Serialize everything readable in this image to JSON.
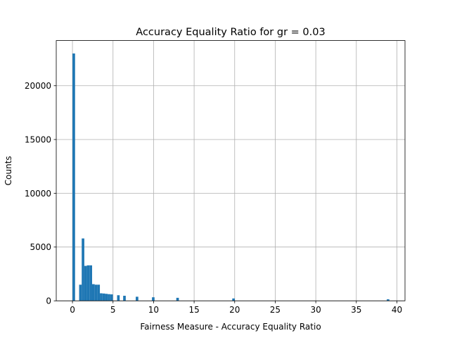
{
  "chart_data": {
    "type": "bar",
    "title": "Accuracy Equality Ratio for gr = 0.03",
    "xlabel": "Fairness Measure - Accuracy Equality Ratio",
    "ylabel": "Counts",
    "xlim": [
      -2.0,
      41.0
    ],
    "ylim": [
      0,
      24200
    ],
    "xticks": [
      0,
      5,
      10,
      15,
      20,
      25,
      30,
      35,
      40
    ],
    "yticks": [
      0,
      5000,
      10000,
      15000,
      20000
    ],
    "grid": true,
    "bar_color": "#1f77b4",
    "bins": [
      {
        "x0": 0.0,
        "x1": 0.32,
        "count": 23000
      },
      {
        "x0": 0.82,
        "x1": 1.14,
        "count": 1500
      },
      {
        "x0": 1.14,
        "x1": 1.46,
        "count": 5800
      },
      {
        "x0": 1.46,
        "x1": 1.78,
        "count": 3250
      },
      {
        "x0": 1.78,
        "x1": 2.1,
        "count": 3300
      },
      {
        "x0": 2.1,
        "x1": 2.42,
        "count": 3300
      },
      {
        "x0": 2.42,
        "x1": 2.74,
        "count": 1550
      },
      {
        "x0": 2.74,
        "x1": 3.06,
        "count": 1500
      },
      {
        "x0": 3.06,
        "x1": 3.38,
        "count": 1500
      },
      {
        "x0": 3.38,
        "x1": 3.7,
        "count": 700
      },
      {
        "x0": 3.7,
        "x1": 4.02,
        "count": 680
      },
      {
        "x0": 4.02,
        "x1": 4.34,
        "count": 650
      },
      {
        "x0": 4.34,
        "x1": 4.66,
        "count": 620
      },
      {
        "x0": 4.66,
        "x1": 4.98,
        "count": 600
      },
      {
        "x0": 5.5,
        "x1": 5.82,
        "count": 520
      },
      {
        "x0": 6.25,
        "x1": 6.57,
        "count": 470
      },
      {
        "x0": 7.8,
        "x1": 8.12,
        "count": 380
      },
      {
        "x0": 9.8,
        "x1": 10.12,
        "count": 330
      },
      {
        "x0": 12.8,
        "x1": 13.12,
        "count": 280
      },
      {
        "x0": 19.7,
        "x1": 20.02,
        "count": 220
      },
      {
        "x0": 38.75,
        "x1": 39.07,
        "count": 140
      }
    ]
  }
}
